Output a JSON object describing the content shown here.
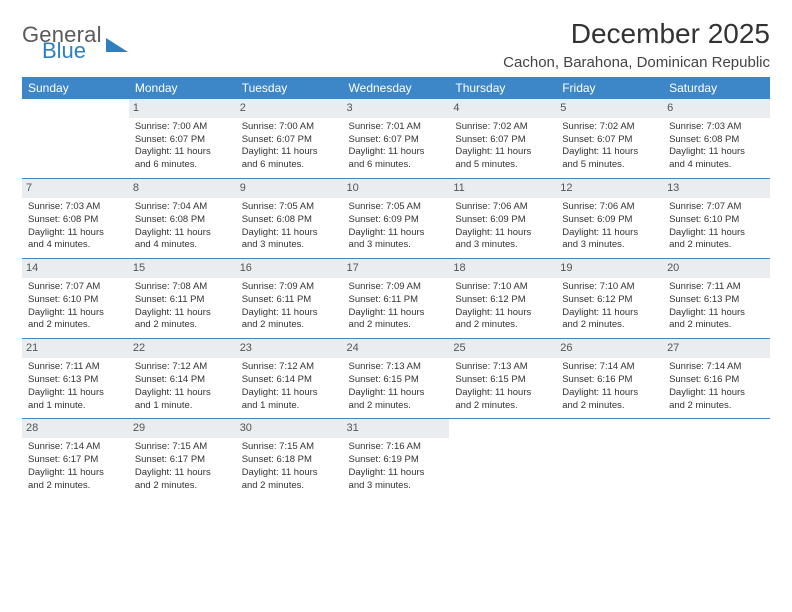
{
  "logo": {
    "word1": "General",
    "word2": "Blue"
  },
  "title": "December 2025",
  "location": "Cachon, Barahona, Dominican Republic",
  "columns": [
    "Sunday",
    "Monday",
    "Tuesday",
    "Wednesday",
    "Thursday",
    "Friday",
    "Saturday"
  ],
  "colors": {
    "header_bg": "#3d87c9",
    "header_fg": "#ffffff",
    "daynum_bg": "#e9edf0",
    "rule": "#3d87c9",
    "logo_gray": "#5a5a5a",
    "logo_blue": "#2d7fc1"
  },
  "weeks": [
    [
      {
        "n": "",
        "lines": []
      },
      {
        "n": "1",
        "lines": [
          "Sunrise: 7:00 AM",
          "Sunset: 6:07 PM",
          "Daylight: 11 hours",
          "and 6 minutes."
        ]
      },
      {
        "n": "2",
        "lines": [
          "Sunrise: 7:00 AM",
          "Sunset: 6:07 PM",
          "Daylight: 11 hours",
          "and 6 minutes."
        ]
      },
      {
        "n": "3",
        "lines": [
          "Sunrise: 7:01 AM",
          "Sunset: 6:07 PM",
          "Daylight: 11 hours",
          "and 6 minutes."
        ]
      },
      {
        "n": "4",
        "lines": [
          "Sunrise: 7:02 AM",
          "Sunset: 6:07 PM",
          "Daylight: 11 hours",
          "and 5 minutes."
        ]
      },
      {
        "n": "5",
        "lines": [
          "Sunrise: 7:02 AM",
          "Sunset: 6:07 PM",
          "Daylight: 11 hours",
          "and 5 minutes."
        ]
      },
      {
        "n": "6",
        "lines": [
          "Sunrise: 7:03 AM",
          "Sunset: 6:08 PM",
          "Daylight: 11 hours",
          "and 4 minutes."
        ]
      }
    ],
    [
      {
        "n": "7",
        "lines": [
          "Sunrise: 7:03 AM",
          "Sunset: 6:08 PM",
          "Daylight: 11 hours",
          "and 4 minutes."
        ]
      },
      {
        "n": "8",
        "lines": [
          "Sunrise: 7:04 AM",
          "Sunset: 6:08 PM",
          "Daylight: 11 hours",
          "and 4 minutes."
        ]
      },
      {
        "n": "9",
        "lines": [
          "Sunrise: 7:05 AM",
          "Sunset: 6:08 PM",
          "Daylight: 11 hours",
          "and 3 minutes."
        ]
      },
      {
        "n": "10",
        "lines": [
          "Sunrise: 7:05 AM",
          "Sunset: 6:09 PM",
          "Daylight: 11 hours",
          "and 3 minutes."
        ]
      },
      {
        "n": "11",
        "lines": [
          "Sunrise: 7:06 AM",
          "Sunset: 6:09 PM",
          "Daylight: 11 hours",
          "and 3 minutes."
        ]
      },
      {
        "n": "12",
        "lines": [
          "Sunrise: 7:06 AM",
          "Sunset: 6:09 PM",
          "Daylight: 11 hours",
          "and 3 minutes."
        ]
      },
      {
        "n": "13",
        "lines": [
          "Sunrise: 7:07 AM",
          "Sunset: 6:10 PM",
          "Daylight: 11 hours",
          "and 2 minutes."
        ]
      }
    ],
    [
      {
        "n": "14",
        "lines": [
          "Sunrise: 7:07 AM",
          "Sunset: 6:10 PM",
          "Daylight: 11 hours",
          "and 2 minutes."
        ]
      },
      {
        "n": "15",
        "lines": [
          "Sunrise: 7:08 AM",
          "Sunset: 6:11 PM",
          "Daylight: 11 hours",
          "and 2 minutes."
        ]
      },
      {
        "n": "16",
        "lines": [
          "Sunrise: 7:09 AM",
          "Sunset: 6:11 PM",
          "Daylight: 11 hours",
          "and 2 minutes."
        ]
      },
      {
        "n": "17",
        "lines": [
          "Sunrise: 7:09 AM",
          "Sunset: 6:11 PM",
          "Daylight: 11 hours",
          "and 2 minutes."
        ]
      },
      {
        "n": "18",
        "lines": [
          "Sunrise: 7:10 AM",
          "Sunset: 6:12 PM",
          "Daylight: 11 hours",
          "and 2 minutes."
        ]
      },
      {
        "n": "19",
        "lines": [
          "Sunrise: 7:10 AM",
          "Sunset: 6:12 PM",
          "Daylight: 11 hours",
          "and 2 minutes."
        ]
      },
      {
        "n": "20",
        "lines": [
          "Sunrise: 7:11 AM",
          "Sunset: 6:13 PM",
          "Daylight: 11 hours",
          "and 2 minutes."
        ]
      }
    ],
    [
      {
        "n": "21",
        "lines": [
          "Sunrise: 7:11 AM",
          "Sunset: 6:13 PM",
          "Daylight: 11 hours",
          "and 1 minute."
        ]
      },
      {
        "n": "22",
        "lines": [
          "Sunrise: 7:12 AM",
          "Sunset: 6:14 PM",
          "Daylight: 11 hours",
          "and 1 minute."
        ]
      },
      {
        "n": "23",
        "lines": [
          "Sunrise: 7:12 AM",
          "Sunset: 6:14 PM",
          "Daylight: 11 hours",
          "and 1 minute."
        ]
      },
      {
        "n": "24",
        "lines": [
          "Sunrise: 7:13 AM",
          "Sunset: 6:15 PM",
          "Daylight: 11 hours",
          "and 2 minutes."
        ]
      },
      {
        "n": "25",
        "lines": [
          "Sunrise: 7:13 AM",
          "Sunset: 6:15 PM",
          "Daylight: 11 hours",
          "and 2 minutes."
        ]
      },
      {
        "n": "26",
        "lines": [
          "Sunrise: 7:14 AM",
          "Sunset: 6:16 PM",
          "Daylight: 11 hours",
          "and 2 minutes."
        ]
      },
      {
        "n": "27",
        "lines": [
          "Sunrise: 7:14 AM",
          "Sunset: 6:16 PM",
          "Daylight: 11 hours",
          "and 2 minutes."
        ]
      }
    ],
    [
      {
        "n": "28",
        "lines": [
          "Sunrise: 7:14 AM",
          "Sunset: 6:17 PM",
          "Daylight: 11 hours",
          "and 2 minutes."
        ]
      },
      {
        "n": "29",
        "lines": [
          "Sunrise: 7:15 AM",
          "Sunset: 6:17 PM",
          "Daylight: 11 hours",
          "and 2 minutes."
        ]
      },
      {
        "n": "30",
        "lines": [
          "Sunrise: 7:15 AM",
          "Sunset: 6:18 PM",
          "Daylight: 11 hours",
          "and 2 minutes."
        ]
      },
      {
        "n": "31",
        "lines": [
          "Sunrise: 7:16 AM",
          "Sunset: 6:19 PM",
          "Daylight: 11 hours",
          "and 3 minutes."
        ]
      },
      {
        "n": "",
        "lines": []
      },
      {
        "n": "",
        "lines": []
      },
      {
        "n": "",
        "lines": []
      }
    ]
  ]
}
